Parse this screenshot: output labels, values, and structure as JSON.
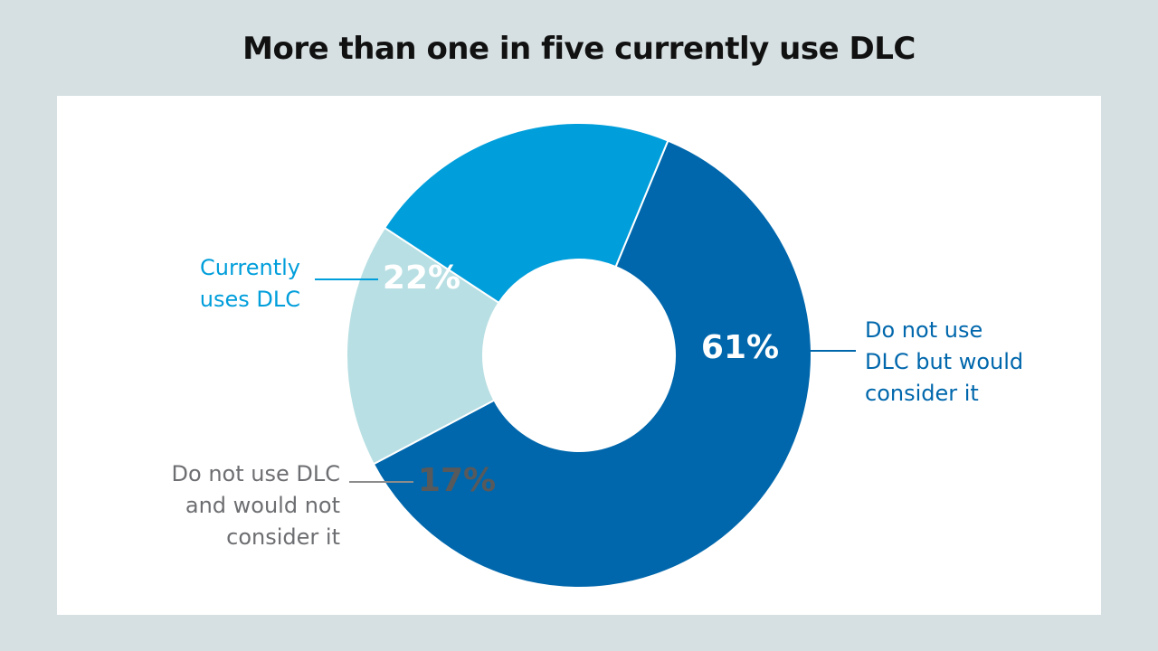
{
  "chart_data": {
    "type": "pie",
    "title": "More than one in five currently use DLC",
    "slices": [
      {
        "label_lines": [
          "Do not use",
          "DLC but would",
          "consider it"
        ],
        "value": 61,
        "value_label": "61%",
        "color": "#0067ac",
        "label_color": "#0067ac",
        "value_label_color": "#ffffff"
      },
      {
        "label_lines": [
          "Do not use DLC",
          "and would not",
          "consider it"
        ],
        "value": 17,
        "value_label": "17%",
        "color": "#b8dfe3",
        "label_color": "#6d6e71",
        "value_label_color": "#58595b"
      },
      {
        "label_lines": [
          "Currently",
          "uses DLC"
        ],
        "value": 22,
        "value_label": "22%",
        "color": "#009edb",
        "label_color": "#009edb",
        "value_label_color": "#ffffff"
      }
    ],
    "donut": true
  },
  "colors": {
    "background": "#d6dfe1",
    "panel": "#ffffff"
  }
}
